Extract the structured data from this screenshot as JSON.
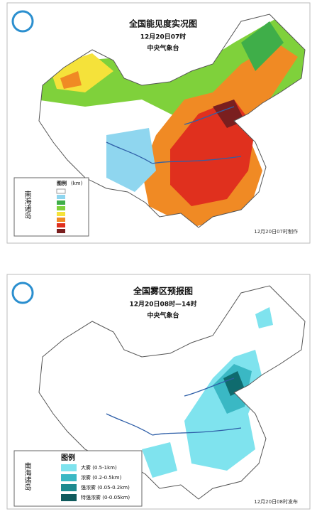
{
  "panels": [
    {
      "title": "全国能见度实况图",
      "time": "12月20日07时",
      "issuer": "中央气象台",
      "legend_title": "图例",
      "legend_unit": "(km)",
      "inset_label": "南海诸岛",
      "footer": "12月20日07时制作"
    },
    {
      "title": "全国雾区预报图",
      "time": "12月20日08时—14时",
      "issuer": "中央气象台",
      "legend_title": "图例",
      "inset_label": "南海诸岛",
      "footer": "12月20日08时发布",
      "legend_items": [
        "大雾 (0.5-1km)",
        "浓雾 (0.2-0.5km)",
        "强浓雾 (0.05-0.2km)",
        "特强浓雾 (0-0.05km)"
      ]
    }
  ]
}
